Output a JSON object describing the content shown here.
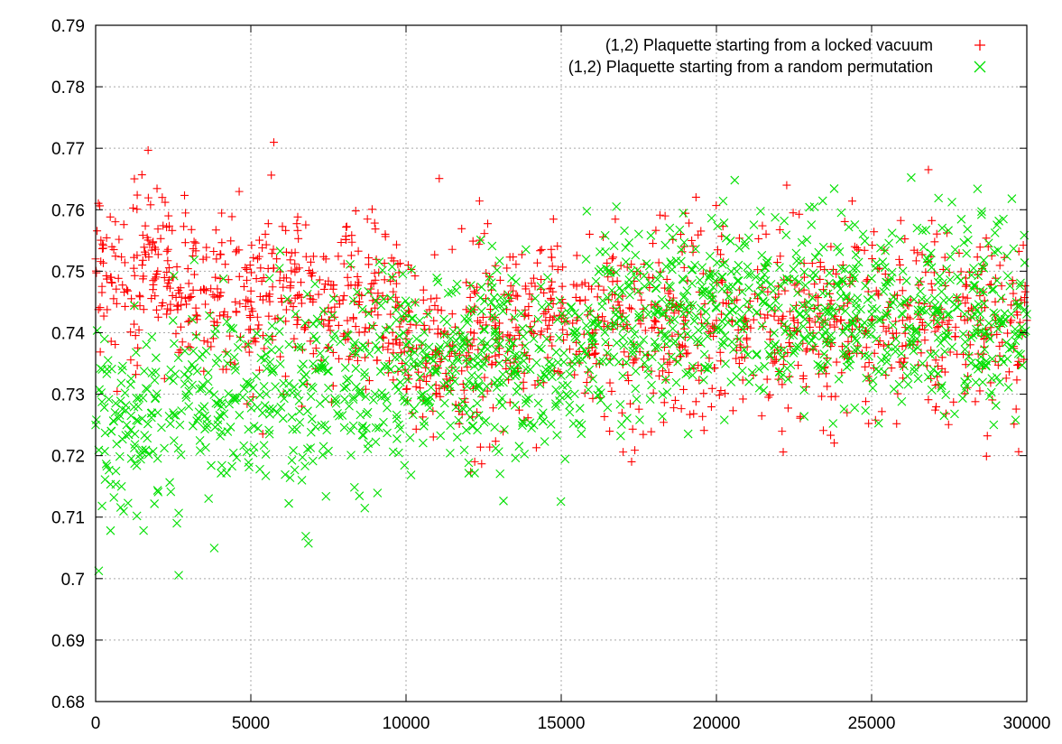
{
  "chart_data": {
    "type": "scatter",
    "title": "",
    "xlabel": "",
    "ylabel": "",
    "xlim": [
      0,
      30000
    ],
    "ylim": [
      0.68,
      0.79
    ],
    "grid": true,
    "legend_position": "top-right",
    "x_ticks": [
      0,
      5000,
      10000,
      15000,
      20000,
      25000,
      30000
    ],
    "x_tick_labels": [
      "0",
      "5000",
      "10000",
      "15000",
      "20000",
      "25000",
      "30000"
    ],
    "y_ticks": [
      0.68,
      0.69,
      0.7,
      0.71,
      0.72,
      0.73,
      0.74,
      0.75,
      0.76,
      0.77,
      0.78,
      0.79
    ],
    "y_tick_labels": [
      "0.68",
      "0.69",
      "0.7",
      "0.71",
      "0.72",
      "0.73",
      "0.74",
      "0.75",
      "0.76",
      "0.77",
      "0.78",
      "0.79"
    ],
    "series": [
      {
        "name": "(1,2) Plaquette starting from a locked vacuum",
        "marker": "plus",
        "color": "#ff0000",
        "x": [
          0,
          500,
          1000,
          1500,
          2000,
          2500,
          3000,
          3500,
          4000,
          4500,
          5000,
          5500,
          6000,
          6500,
          7000,
          7500,
          8000,
          8500,
          9000,
          9500,
          10000,
          10500,
          11000,
          11500,
          12000,
          12500,
          13000,
          13500,
          14000,
          14500,
          15000,
          15500,
          16000,
          16500,
          17000,
          17500,
          18000,
          18500,
          19000,
          19500,
          20000,
          20500,
          21000,
          21500,
          22000,
          22500,
          23000,
          23500,
          24000,
          24500,
          25000,
          25500,
          26000,
          26500,
          27000,
          27500,
          28000,
          28500,
          29000,
          29500,
          30000
        ],
        "y": [
          0.752,
          0.749,
          0.747,
          0.751,
          0.75,
          0.749,
          0.748,
          0.747,
          0.746,
          0.745,
          0.745,
          0.746,
          0.745,
          0.746,
          0.745,
          0.744,
          0.746,
          0.745,
          0.744,
          0.743,
          0.739,
          0.738,
          0.737,
          0.738,
          0.738,
          0.738,
          0.739,
          0.739,
          0.741,
          0.742,
          0.744,
          0.742,
          0.74,
          0.741,
          0.741,
          0.742,
          0.742,
          0.742,
          0.742,
          0.743,
          0.742,
          0.742,
          0.741,
          0.741,
          0.742,
          0.742,
          0.742,
          0.742,
          0.742,
          0.742,
          0.742,
          0.743,
          0.742,
          0.743,
          0.742,
          0.742,
          0.742,
          0.742,
          0.742,
          0.742,
          0.742
        ],
        "spread": [
          0.009,
          0.008,
          0.008,
          0.008,
          0.008,
          0.008,
          0.008,
          0.008,
          0.008,
          0.008,
          0.008,
          0.008,
          0.008,
          0.008,
          0.008,
          0.008,
          0.008,
          0.008,
          0.008,
          0.008,
          0.009,
          0.009,
          0.009,
          0.009,
          0.009,
          0.009,
          0.009,
          0.009,
          0.009,
          0.009,
          0.009,
          0.009,
          0.009,
          0.009,
          0.009,
          0.009,
          0.009,
          0.009,
          0.009,
          0.009,
          0.009,
          0.009,
          0.009,
          0.009,
          0.009,
          0.009,
          0.009,
          0.009,
          0.009,
          0.009,
          0.009,
          0.009,
          0.009,
          0.009,
          0.009,
          0.009,
          0.009,
          0.009,
          0.009,
          0.009,
          0.009
        ]
      },
      {
        "name": "(1,2) Plaquette starting from a random permutation",
        "marker": "cross",
        "color": "#00e000",
        "x": [
          0,
          500,
          1000,
          1500,
          2000,
          2500,
          3000,
          3500,
          4000,
          4500,
          5000,
          5500,
          6000,
          6500,
          7000,
          7500,
          8000,
          8500,
          9000,
          9500,
          10000,
          10500,
          11000,
          11500,
          12000,
          12500,
          13000,
          13500,
          14000,
          14500,
          15000,
          15500,
          16000,
          16500,
          17000,
          17500,
          18000,
          18500,
          19000,
          19500,
          20000,
          20500,
          21000,
          21500,
          22000,
          22500,
          23000,
          23500,
          24000,
          24500,
          25000,
          25500,
          26000,
          26500,
          27000,
          27500,
          28000,
          28500,
          29000,
          29500,
          30000
        ],
        "y": [
          0.725,
          0.724,
          0.725,
          0.726,
          0.727,
          0.727,
          0.728,
          0.728,
          0.729,
          0.729,
          0.729,
          0.73,
          0.73,
          0.73,
          0.731,
          0.731,
          0.731,
          0.73,
          0.73,
          0.734,
          0.735,
          0.735,
          0.734,
          0.735,
          0.735,
          0.735,
          0.735,
          0.734,
          0.734,
          0.734,
          0.733,
          0.736,
          0.739,
          0.741,
          0.742,
          0.743,
          0.743,
          0.744,
          0.744,
          0.744,
          0.744,
          0.745,
          0.745,
          0.745,
          0.744,
          0.744,
          0.744,
          0.744,
          0.744,
          0.744,
          0.743,
          0.743,
          0.743,
          0.743,
          0.743,
          0.743,
          0.743,
          0.743,
          0.743,
          0.743,
          0.743
        ],
        "spread": [
          0.01,
          0.01,
          0.01,
          0.01,
          0.01,
          0.01,
          0.01,
          0.01,
          0.01,
          0.01,
          0.01,
          0.01,
          0.01,
          0.01,
          0.01,
          0.01,
          0.01,
          0.01,
          0.01,
          0.01,
          0.009,
          0.009,
          0.009,
          0.009,
          0.009,
          0.009,
          0.009,
          0.009,
          0.009,
          0.009,
          0.009,
          0.009,
          0.009,
          0.009,
          0.009,
          0.009,
          0.009,
          0.009,
          0.009,
          0.009,
          0.009,
          0.009,
          0.009,
          0.009,
          0.009,
          0.009,
          0.009,
          0.009,
          0.009,
          0.009,
          0.009,
          0.009,
          0.009,
          0.009,
          0.009,
          0.009,
          0.009,
          0.009,
          0.009,
          0.009,
          0.009
        ]
      }
    ]
  }
}
